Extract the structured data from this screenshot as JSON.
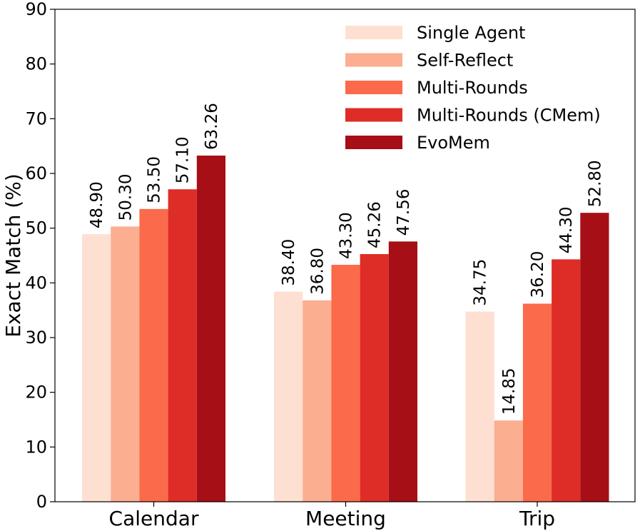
{
  "chart_data": {
    "type": "bar",
    "title": "",
    "xlabel": "",
    "ylabel": "Exact Match (%)",
    "ylim": [
      0,
      90
    ],
    "yticks": [
      "0",
      "10",
      "20",
      "30",
      "40",
      "50",
      "60",
      "70",
      "80",
      "90"
    ],
    "categories": [
      "Calendar",
      "Meeting",
      "Trip"
    ],
    "grid": false,
    "legend_position": "top-right",
    "series": [
      {
        "name": "Single Agent",
        "color": "#fee0d2",
        "values": [
          48.9,
          38.4,
          34.75
        ],
        "labels": [
          "48.90",
          "38.40",
          "34.75"
        ]
      },
      {
        "name": "Self-Reflect",
        "color": "#fcae91",
        "values": [
          50.3,
          36.8,
          14.85
        ],
        "labels": [
          "50.30",
          "36.80",
          "14.85"
        ]
      },
      {
        "name": "Multi-Rounds",
        "color": "#fb6a4a",
        "values": [
          53.5,
          43.3,
          36.2
        ],
        "labels": [
          "53.50",
          "43.30",
          "36.20"
        ]
      },
      {
        "name": "Multi-Rounds (CMem)",
        "color": "#de2d26",
        "values": [
          57.1,
          45.26,
          44.3
        ],
        "labels": [
          "57.10",
          "45.26",
          "44.30"
        ]
      },
      {
        "name": "EvoMem",
        "color": "#a50f15",
        "values": [
          63.26,
          47.56,
          52.8
        ],
        "labels": [
          "63.26",
          "47.56",
          "52.80"
        ]
      }
    ]
  }
}
